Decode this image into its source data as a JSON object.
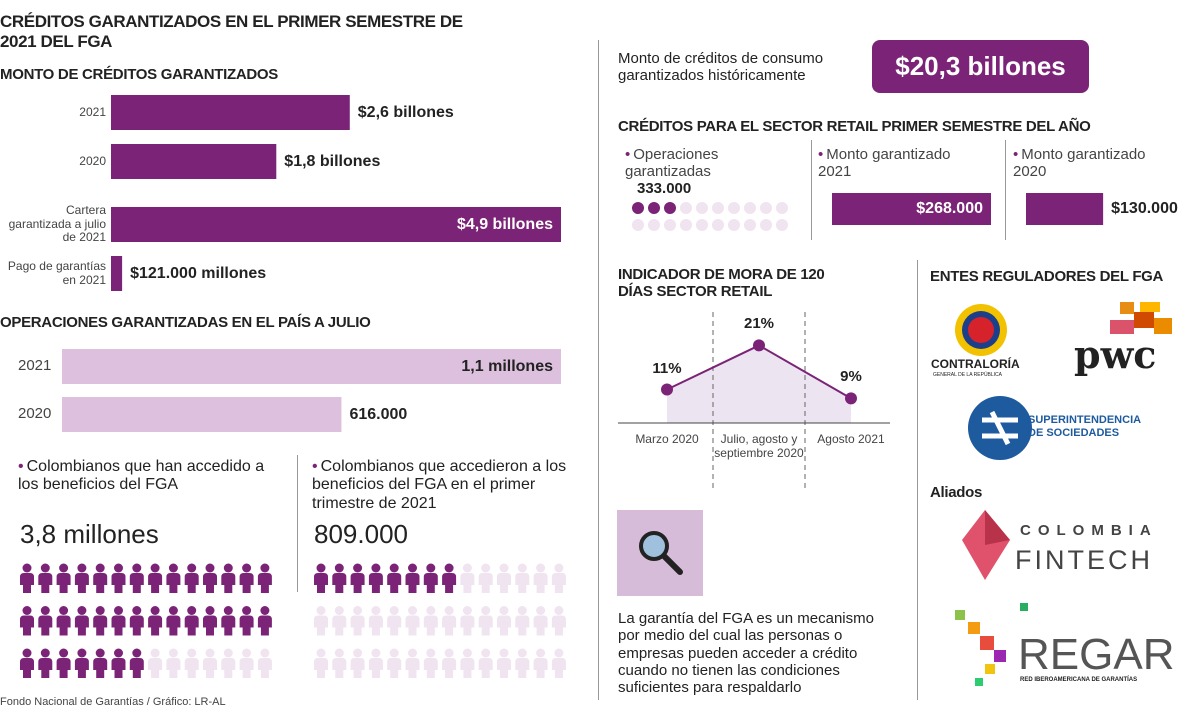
{
  "title": "CRÉDITOS GARANTIZADOS EN EL PRIMER SEMESTRE DE 2021 DEL FGA",
  "historic": {
    "text": "Monto de créditos  de consumo garantizados históricamente",
    "figure": "$20,3 billones"
  },
  "retail_title": "CRÉDITOS PARA EL SECTOR RETAIL PRIMER SEMESTRE DEL AÑO",
  "regulators": {
    "title": "ENTES REGULADORES DEL FGA",
    "contraloria": "CONTRALORÍA",
    "contraloria_sub": "GENERAL DE LA REPÚBLICA",
    "pwc": "pwc",
    "supersociedades": "SUPERINTENDENCIA DE SOCIEDADES"
  },
  "allies": {
    "title": "Aliados",
    "fintech_top": "COLOMBIA",
    "fintech_bottom": "FINTECH",
    "regar": "REGAR",
    "regar_sub": "RED IBEROAMERICANA DE GARANTÍAS"
  },
  "note": "La garantía del FGA es un mecanismo por medio del cual las personas o empresas pueden acceder a crédito cuando no tienen las condiciones suficientes para respaldarlo",
  "source": "Fondo Nacional de Garantías / Gráfico: LR-AL",
  "chart_data": [
    {
      "type": "bar",
      "title": "MONTO DE CRÉDITOS GARANTIZADOS",
      "categories": [
        "2021",
        "2020",
        "Cartera garantizada a julio de 2021",
        "Pago de garantías en 2021"
      ],
      "values": [
        2.6,
        1.8,
        4.9,
        0.121
      ],
      "value_labels": [
        "$2,6 billones",
        "$1,8 billones",
        "$4,9 billones",
        "$121.000 millones"
      ],
      "color": "#7b2477",
      "xlim": [
        0,
        4.9
      ]
    },
    {
      "type": "bar",
      "title": "OPERACIONES GARANTIZADAS EN EL PAÍS A JULIO",
      "categories": [
        "2021",
        "2020"
      ],
      "values": [
        1.1,
        0.616
      ],
      "value_labels": [
        "1,1 millones",
        "616.000"
      ],
      "color": "#dcc0dd",
      "xlim": [
        0,
        1.1
      ]
    },
    {
      "type": "pictogram",
      "text": "Colombianos que han accedido a los beneficios del FGA",
      "figure": "3,8 millones",
      "filled": 35,
      "total": 42,
      "color": "#7b2477",
      "empty_color": "#efe4f0"
    },
    {
      "type": "pictogram",
      "text": "Colombianos que accedieron a los beneficios del FGA en el primer trimestre de 2021",
      "figure": "809.000",
      "filled": 8,
      "total": 42,
      "color": "#7b2477",
      "empty_color": "#efe4f0"
    },
    {
      "type": "dots",
      "text": "Operaciones garantizadas",
      "figure": "333.000",
      "filled": 3,
      "total": 20,
      "color": "#7b2477",
      "empty_color": "#efe4f0"
    },
    {
      "type": "bar",
      "categories": [
        "Monto garantizado 2021",
        "Monto garantizado 2020"
      ],
      "values": [
        268000,
        130000
      ],
      "value_labels": [
        "$268.000",
        "$130.000"
      ],
      "color": "#7b2477",
      "xlim": [
        0,
        268000
      ]
    },
    {
      "type": "line",
      "title": "INDICADOR DE MORA DE 120 DÍAS SECTOR RETAIL",
      "categories": [
        "Marzo 2020",
        "Julio, agosto y septiembre 2020",
        "Agosto 2021"
      ],
      "values": [
        11,
        21,
        9
      ],
      "value_labels": [
        "11%",
        "21%",
        "9%"
      ],
      "color": "#7b2477",
      "ylim": [
        5,
        22
      ]
    }
  ]
}
